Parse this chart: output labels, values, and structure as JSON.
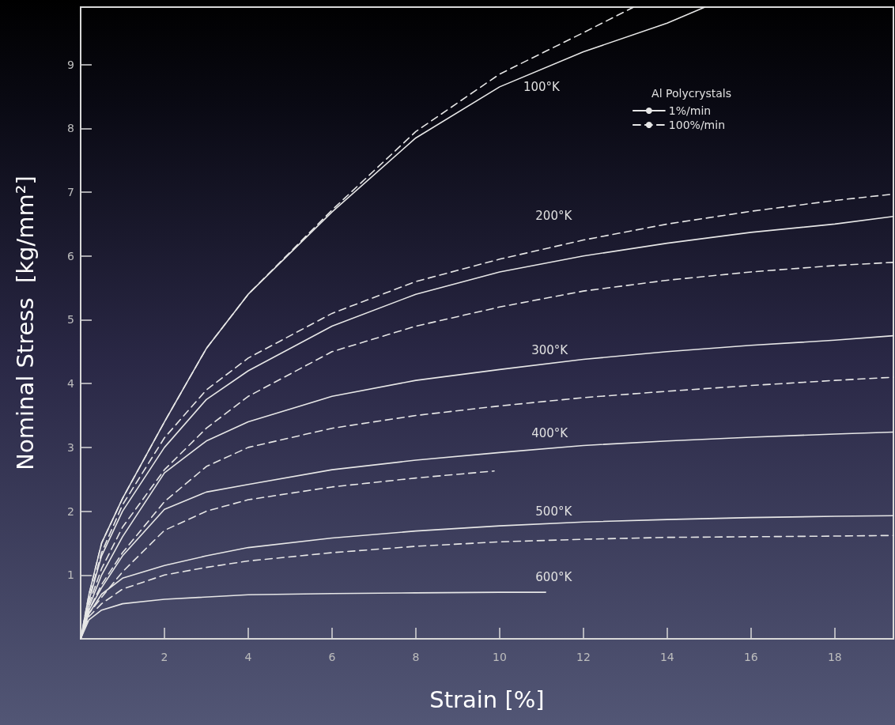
{
  "chart_data": {
    "type": "line",
    "xlabel": "Strain [%]",
    "ylabel": "Nominal Stress  [kg/mm²]",
    "legend_title": "Al Polycrystals",
    "legend": "top right",
    "grid": false,
    "marker": "none",
    "xlim": [
      0,
      19.4
    ],
    "ylim": [
      0,
      9.9
    ],
    "xticks": [
      2,
      4,
      6,
      8,
      10,
      12,
      14,
      16,
      18
    ],
    "yticks": [
      1,
      2,
      3,
      4,
      5,
      6,
      7,
      8,
      9
    ],
    "annotations": [
      "100°K",
      "200°K",
      "300°K",
      "400°K",
      "500°K",
      "600°K"
    ],
    "series": [
      {
        "name": "1%/min",
        "color": "#e6e6e6",
        "line_style": "solid",
        "x": [
          0,
          0.2,
          0.5,
          1,
          2,
          3,
          4,
          6,
          8,
          10,
          12,
          14,
          14.9
        ],
        "values": [
          0,
          0.7,
          1.5,
          2.2,
          3.4,
          4.55,
          5.4,
          6.69,
          7.85,
          8.65,
          9.2,
          9.65,
          9.9
        ]
      },
      {
        "name": "100%/min",
        "color": "#e6e6e6",
        "line_style": "dashed",
        "x": [
          0,
          0.2,
          0.5,
          1,
          2,
          3,
          4,
          6,
          8,
          10,
          12,
          13.2
        ],
        "values": [
          0,
          0.7,
          1.5,
          2.2,
          3.4,
          4.55,
          5.4,
          6.72,
          7.95,
          8.85,
          9.5,
          9.9
        ]
      },
      {
        "color": "#e6e6e6",
        "line_style": "solid",
        "x": [
          0,
          0.2,
          0.5,
          1,
          2,
          3,
          4,
          6,
          8,
          10,
          12,
          14,
          16,
          18,
          19.4
        ],
        "values": [
          0,
          0.6,
          1.3,
          2.0,
          3.0,
          3.75,
          4.2,
          4.9,
          5.4,
          5.75,
          6.0,
          6.2,
          6.37,
          6.5,
          6.62
        ]
      },
      {
        "color": "#e6e6e6",
        "line_style": "dashed",
        "x": [
          0,
          0.2,
          0.5,
          1,
          2,
          3,
          4,
          6,
          8,
          10,
          12,
          14,
          16,
          18,
          19.4
        ],
        "values": [
          0,
          0.62,
          1.35,
          2.1,
          3.15,
          3.9,
          4.4,
          5.1,
          5.6,
          5.95,
          6.25,
          6.5,
          6.7,
          6.87,
          6.97
        ]
      },
      {
        "color": "#e6e6e6",
        "line_style": "solid",
        "x": [
          0,
          0.2,
          0.5,
          1,
          2,
          3,
          4,
          6,
          8,
          10,
          12,
          14,
          16,
          18,
          19.4
        ],
        "values": [
          0,
          0.5,
          1.0,
          1.6,
          2.6,
          3.1,
          3.4,
          3.8,
          4.05,
          4.22,
          4.38,
          4.5,
          4.6,
          4.68,
          4.75
        ]
      },
      {
        "color": "#e6e6e6",
        "line_style": "dashed",
        "x": [
          0,
          0.2,
          0.5,
          1,
          2,
          3,
          4,
          6,
          8,
          10,
          12,
          14,
          16,
          18,
          19.4
        ],
        "values": [
          0,
          0.55,
          1.1,
          1.75,
          2.65,
          3.3,
          3.8,
          4.5,
          4.9,
          5.2,
          5.45,
          5.62,
          5.75,
          5.85,
          5.9
        ]
      },
      {
        "color": "#e6e6e6",
        "line_style": "solid",
        "x": [
          0,
          0.2,
          0.5,
          1,
          2,
          3,
          4,
          6,
          8,
          10,
          12,
          14,
          16,
          18,
          19.4
        ],
        "values": [
          0,
          0.45,
          0.8,
          1.3,
          2.03,
          2.3,
          2.42,
          2.65,
          2.8,
          2.92,
          3.03,
          3.1,
          3.16,
          3.21,
          3.24
        ]
      },
      {
        "color": "#e6e6e6",
        "line_style": "dashed",
        "x": [
          0,
          0.2,
          0.5,
          1,
          2,
          3,
          4,
          6,
          8,
          10,
          12,
          14,
          16,
          18,
          19.4
        ],
        "values": [
          0,
          0.45,
          0.85,
          1.35,
          2.15,
          2.7,
          3.0,
          3.3,
          3.5,
          3.65,
          3.78,
          3.88,
          3.97,
          4.05,
          4.1
        ]
      },
      {
        "color": "#e6e6e6",
        "line_style": "solid",
        "x": [
          0,
          0.2,
          0.5,
          1,
          2,
          3,
          4,
          6,
          8,
          10,
          12,
          14,
          16,
          18,
          19.4
        ],
        "values": [
          0,
          0.4,
          0.7,
          0.95,
          1.15,
          1.3,
          1.43,
          1.58,
          1.69,
          1.77,
          1.83,
          1.87,
          1.9,
          1.92,
          1.93
        ]
      },
      {
        "color": "#e6e6e6",
        "line_style": "dashed",
        "x": [
          0,
          0.2,
          0.5,
          1,
          2,
          3,
          4,
          6,
          8,
          9.87
        ],
        "values": [
          0,
          0.4,
          0.65,
          1.05,
          1.7,
          2.0,
          2.18,
          2.38,
          2.52,
          2.63
        ]
      },
      {
        "color": "#e6e6e6",
        "line_style": "solid",
        "x": [
          0,
          0.2,
          0.5,
          1,
          2,
          4,
          6,
          8,
          10,
          11.1
        ],
        "values": [
          0,
          0.3,
          0.45,
          0.55,
          0.62,
          0.69,
          0.71,
          0.72,
          0.73,
          0.73
        ]
      },
      {
        "color": "#e6e6e6",
        "line_style": "dashed",
        "x": [
          0,
          0.2,
          0.5,
          1,
          2,
          3,
          4,
          6,
          8,
          10,
          12,
          14,
          16,
          18,
          19.4
        ],
        "values": [
          0,
          0.35,
          0.55,
          0.78,
          1.0,
          1.12,
          1.22,
          1.35,
          1.45,
          1.52,
          1.56,
          1.59,
          1.6,
          1.61,
          1.62
        ]
      }
    ]
  }
}
